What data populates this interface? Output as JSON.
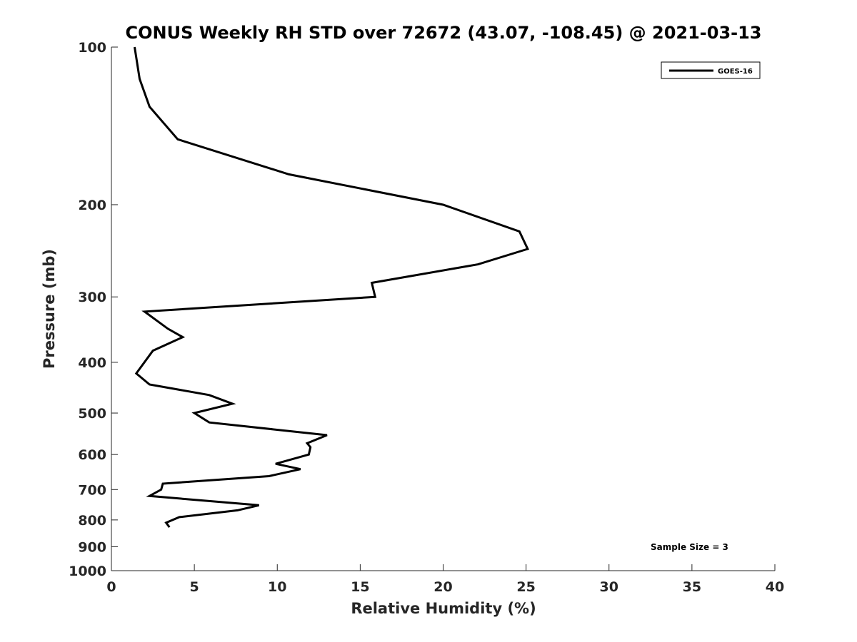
{
  "chart_data": {
    "type": "line",
    "title": "CONUS Weekly RH STD over 72672 (43.07, -108.45) @ 2021-03-13",
    "xlabel": "Relative Humidity (%)",
    "ylabel": "Pressure (mb)",
    "xlim": [
      0,
      40
    ],
    "ylim": [
      100,
      1000
    ],
    "y_scale": "log",
    "y_reversed": true,
    "grid": false,
    "legend_position": "top-right",
    "x_ticks": [
      "0",
      "5",
      "10",
      "15",
      "20",
      "25",
      "30",
      "35",
      "40"
    ],
    "y_ticks": [
      "100",
      "200",
      "300",
      "400",
      "500",
      "600",
      "700",
      "800",
      "900",
      "1000"
    ],
    "series": [
      {
        "name": "GOES-16",
        "color": "#000000",
        "points": [
          [
            1.4,
            100
          ],
          [
            1.7,
            115
          ],
          [
            2.3,
            130
          ],
          [
            4.0,
            150
          ],
          [
            10.7,
            175
          ],
          [
            20.0,
            200
          ],
          [
            24.6,
            225
          ],
          [
            25.1,
            243
          ],
          [
            22.1,
            260
          ],
          [
            15.7,
            282
          ],
          [
            15.9,
            300
          ],
          [
            2.0,
            320
          ],
          [
            3.4,
            345
          ],
          [
            4.3,
            358
          ],
          [
            2.5,
            380
          ],
          [
            1.5,
            420
          ],
          [
            2.3,
            441
          ],
          [
            5.9,
            462
          ],
          [
            7.3,
            480
          ],
          [
            5.0,
            500
          ],
          [
            5.9,
            521
          ],
          [
            13.0,
            551
          ],
          [
            11.8,
            571
          ],
          [
            12.0,
            581
          ],
          [
            11.9,
            600
          ],
          [
            9.9,
            625
          ],
          [
            11.4,
            640
          ],
          [
            9.5,
            660
          ],
          [
            3.1,
            682
          ],
          [
            3.0,
            700
          ],
          [
            2.3,
            720
          ],
          [
            8.9,
            750
          ],
          [
            7.6,
            767
          ],
          [
            4.1,
            790
          ],
          [
            3.3,
            810
          ],
          [
            3.5,
            826
          ]
        ]
      }
    ],
    "annotations": [
      "Sample Size = 3"
    ]
  }
}
